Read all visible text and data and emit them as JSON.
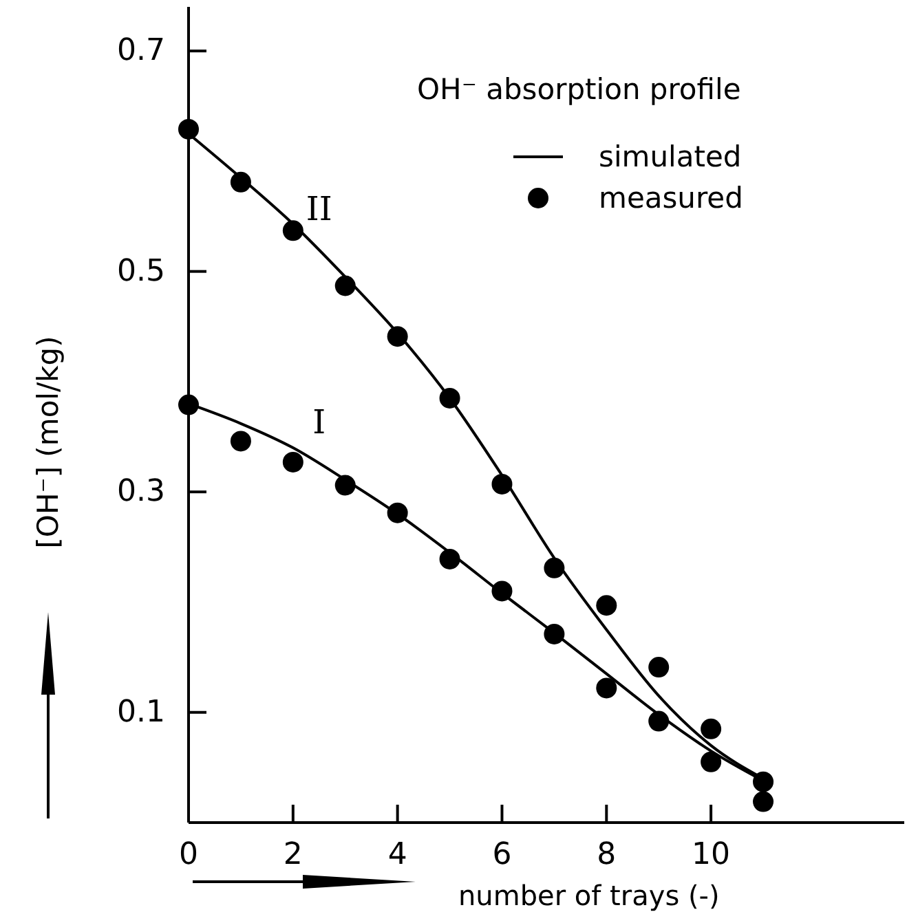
{
  "chart_data": {
    "type": "line",
    "legend_title": "OH⁻ absorption profile",
    "xlabel": "number of trays (-)",
    "ylabel": "[OH⁻] (mol/kg)",
    "x": [
      0,
      1,
      2,
      3,
      4,
      5,
      6,
      7,
      8,
      9,
      10,
      11
    ],
    "xlim": [
      0,
      13.7
    ],
    "xticks": [
      0,
      2,
      4,
      6,
      8,
      10
    ],
    "ylim": [
      0,
      0.74
    ],
    "yticks": [
      0.1,
      0.3,
      0.5,
      0.7
    ],
    "grid": false,
    "legend": "top right",
    "series": [
      {
        "name": "simulated",
        "color": "#000000",
        "line_style": "solid",
        "values": [
          0.625,
          0.585,
          0.543,
          0.495,
          0.444,
          0.385,
          0.315,
          0.24,
          0.175,
          0.115,
          0.07,
          0.04
        ]
      },
      {
        "color": "#000000",
        "line_style": "solid",
        "values": [
          0.38,
          0.362,
          0.34,
          0.311,
          0.28,
          0.245,
          0.208,
          0.172,
          0.135,
          0.098,
          0.065,
          0.038
        ]
      },
      {
        "name": "measured",
        "type": "scatter",
        "color": "#000000",
        "marker": "circle",
        "values": [
          0.629,
          0.581,
          0.537,
          0.487,
          0.441,
          0.385,
          0.307,
          0.231,
          0.197,
          0.141,
          0.085,
          0.037
        ]
      },
      {
        "type": "scatter",
        "color": "#000000",
        "marker": "circle",
        "values": [
          0.379,
          0.346,
          0.327,
          0.306,
          0.281,
          0.239,
          0.21,
          0.171,
          0.122,
          0.092,
          0.055,
          0.019
        ]
      }
    ],
    "annotations": [
      "II",
      "I"
    ]
  }
}
